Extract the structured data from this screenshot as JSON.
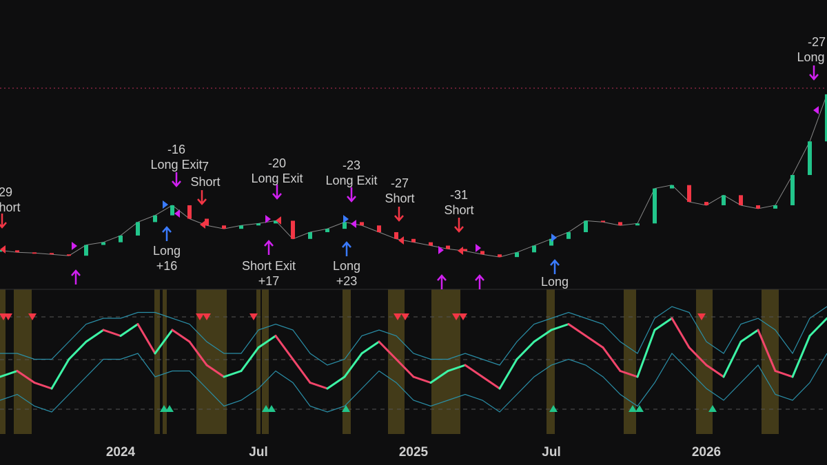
{
  "chart_data": [
    {
      "type": "line",
      "ylim": [
        0,
        420
      ],
      "categories": [
        null,
        null,
        null,
        null,
        null,
        null,
        null,
        "2024",
        null,
        null,
        null,
        null,
        null,
        null,
        null,
        "Jul",
        null,
        null,
        null,
        null,
        null,
        null,
        null,
        null,
        "2025",
        null,
        null,
        null,
        null,
        null,
        null,
        null,
        "Jul",
        null,
        null,
        null,
        null,
        null,
        null,
        null,
        null,
        "2026",
        null,
        null,
        null,
        null,
        null,
        null,
        null
      ],
      "values": [
        58,
        55,
        54,
        52,
        50,
        66,
        70,
        80,
        100,
        110,
        125,
        105,
        95,
        90,
        95,
        98,
        102,
        75,
        85,
        90,
        100,
        95,
        85,
        75,
        70,
        65,
        60,
        57,
        52,
        48,
        55,
        65,
        75,
        85,
        102,
        100,
        95,
        98,
        150,
        155,
        130,
        125,
        140,
        125,
        120,
        125,
        170,
        220,
        290
      ],
      "annotations": [
        {
          "lines": [
            "29",
            "Short"
          ]
        },
        {
          "lines": [
            "-16",
            "Long Exit"
          ]
        },
        {
          "lines": [
            "7",
            "Short"
          ]
        },
        {
          "lines": [
            "-20",
            "Long Exit"
          ]
        },
        {
          "lines": [
            "-23",
            "Long Exit"
          ]
        },
        {
          "lines": [
            "-27",
            "Short"
          ]
        },
        {
          "lines": [
            "-31",
            "Short"
          ]
        },
        {
          "lines": [
            "-27",
            "Long E"
          ]
        },
        {
          "lines": [
            "Long",
            "+16"
          ]
        },
        {
          "lines": [
            "Short Exit",
            "+17"
          ]
        },
        {
          "lines": [
            "Long",
            "+23"
          ]
        },
        {
          "lines": [
            "Long"
          ]
        }
      ]
    },
    {
      "type": "line",
      "ylim": [
        0,
        100
      ],
      "values": [
        40,
        45,
        35,
        30,
        55,
        70,
        80,
        75,
        85,
        60,
        80,
        70,
        50,
        40,
        45,
        65,
        75,
        55,
        35,
        30,
        40,
        60,
        70,
        55,
        40,
        35,
        45,
        50,
        40,
        30,
        55,
        70,
        80,
        85,
        75,
        65,
        45,
        40,
        80,
        90,
        65,
        50,
        40,
        70,
        80,
        45,
        40,
        75,
        90
      ],
      "band_upper": [
        60,
        60,
        55,
        55,
        70,
        85,
        90,
        90,
        95,
        95,
        90,
        85,
        70,
        60,
        60,
        80,
        85,
        80,
        60,
        50,
        55,
        75,
        80,
        75,
        60,
        55,
        55,
        60,
        55,
        50,
        70,
        85,
        90,
        95,
        90,
        85,
        70,
        60,
        90,
        100,
        95,
        70,
        60,
        85,
        90,
        80,
        60,
        90,
        100
      ],
      "band_lower": [
        20,
        25,
        15,
        10,
        25,
        40,
        55,
        55,
        60,
        40,
        45,
        45,
        30,
        15,
        20,
        30,
        45,
        35,
        15,
        10,
        15,
        30,
        45,
        35,
        20,
        15,
        20,
        25,
        20,
        10,
        25,
        40,
        50,
        55,
        50,
        40,
        25,
        15,
        35,
        60,
        45,
        30,
        20,
        35,
        50,
        25,
        20,
        35,
        60
      ]
    }
  ]
}
